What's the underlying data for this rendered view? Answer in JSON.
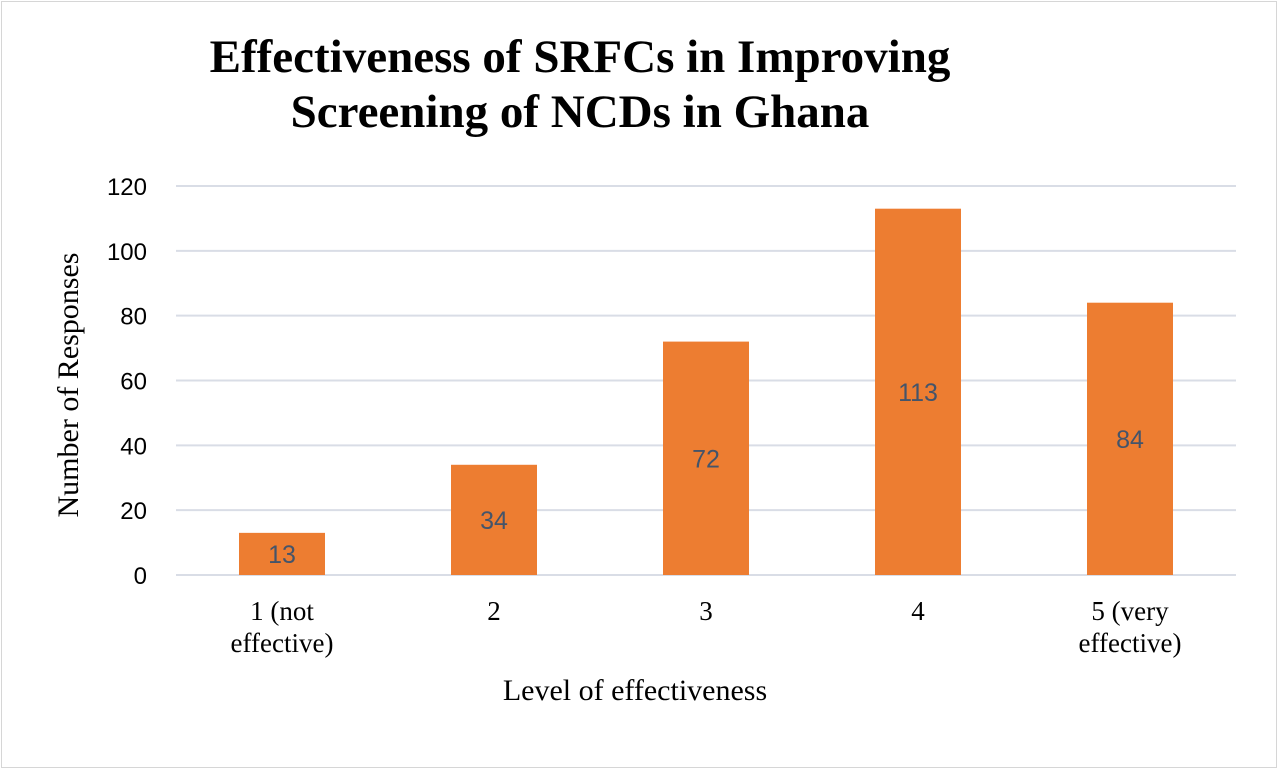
{
  "colors": {
    "bar": "#ed7d31",
    "grid": "#d9dde6",
    "data_label": "#44546a"
  },
  "chart_data": {
    "type": "bar",
    "title_lines": [
      "Effectiveness of SRFCs in Improving",
      "Screening of NCDs in Ghana"
    ],
    "categories": [
      [
        "1 (not",
        "effective)"
      ],
      [
        "2"
      ],
      [
        "3"
      ],
      [
        "4"
      ],
      [
        "5 (very",
        "effective)"
      ]
    ],
    "values": [
      13,
      34,
      72,
      113,
      84
    ],
    "xlabel": "Level of effectiveness",
    "ylabel": "Number of Responses",
    "ylim": [
      0,
      120
    ],
    "yticks": [
      0,
      20,
      40,
      60,
      80,
      100,
      120
    ],
    "grid": true,
    "data_labels": true
  }
}
